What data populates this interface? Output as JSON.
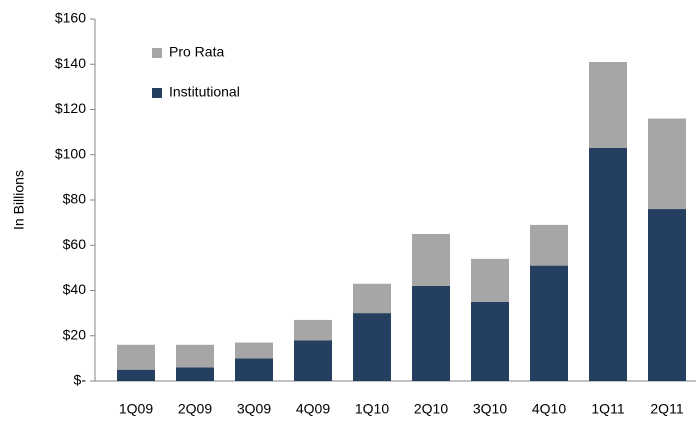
{
  "chart_data": {
    "type": "bar",
    "stacked": true,
    "y_label": "In Billions",
    "categories": [
      "1Q09",
      "2Q09",
      "3Q09",
      "4Q09",
      "1Q10",
      "2Q10",
      "3Q10",
      "4Q10",
      "1Q11",
      "2Q11"
    ],
    "series": [
      {
        "name": "Institutional",
        "color": "#243f60",
        "values": [
          5,
          6,
          10,
          18,
          30,
          42,
          35,
          51,
          103,
          76
        ]
      },
      {
        "name": "Pro Rata",
        "color": "#a6a6a6",
        "values": [
          11,
          10,
          7,
          9,
          13,
          23,
          19,
          18,
          38,
          40
        ]
      }
    ],
    "ylim": [
      0,
      160
    ],
    "yticks": [
      {
        "value": 0,
        "label": "$-"
      },
      {
        "value": 20,
        "label": "$20"
      },
      {
        "value": 40,
        "label": "$40"
      },
      {
        "value": 60,
        "label": "$60"
      },
      {
        "value": 80,
        "label": "$80"
      },
      {
        "value": 100,
        "label": "$100"
      },
      {
        "value": 120,
        "label": "$120"
      },
      {
        "value": 140,
        "label": "$140"
      },
      {
        "value": 160,
        "label": "$160"
      }
    ],
    "legend": "top-left"
  }
}
